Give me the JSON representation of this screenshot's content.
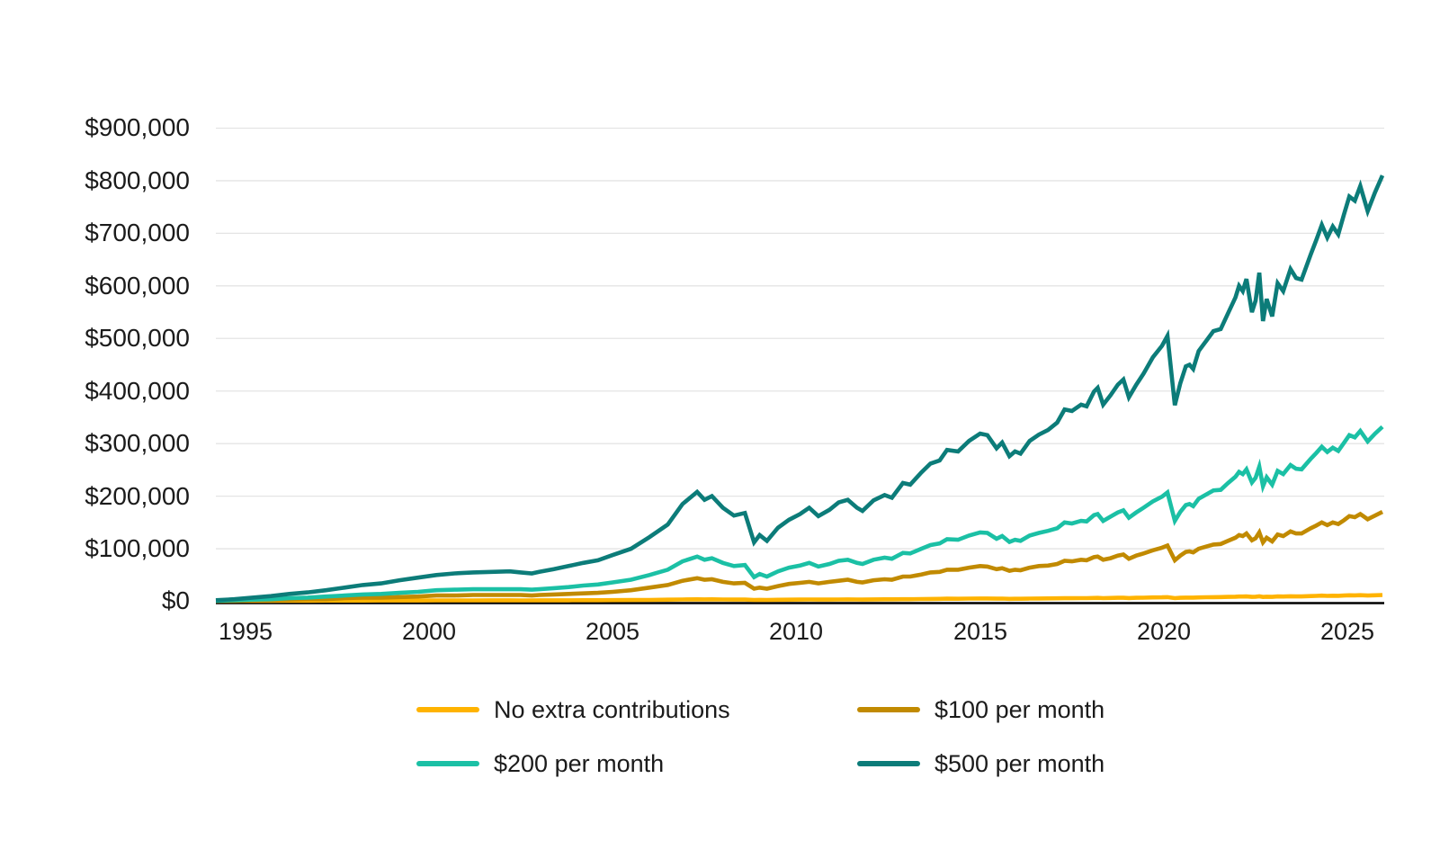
{
  "page": {
    "background": "#ffffff"
  },
  "chart_data": {
    "type": "line",
    "title": "",
    "xlabel": "",
    "ylabel": "",
    "xlim": [
      1994.2,
      2026.0
    ],
    "ylim": [
      0,
      900000
    ],
    "grid": "horizontal",
    "legend_position": "bottom",
    "style": {
      "grid_color": "#e4e4e4",
      "axis_color": "#000000"
    },
    "y_ticks": [
      {
        "value": 900000,
        "label": "$900,000"
      },
      {
        "value": 800000,
        "label": "$800,000"
      },
      {
        "value": 700000,
        "label": "$700,000"
      },
      {
        "value": 600000,
        "label": "$600,000"
      },
      {
        "value": 500000,
        "label": "$500,000"
      },
      {
        "value": 400000,
        "label": "$400,000"
      },
      {
        "value": 300000,
        "label": "$300,000"
      },
      {
        "value": 200000,
        "label": "$200,000"
      },
      {
        "value": 100000,
        "label": "$100,000"
      },
      {
        "value": 0,
        "label": "$0"
      }
    ],
    "x_ticks": [
      {
        "value": 1995,
        "label": "1995"
      },
      {
        "value": 2000,
        "label": "2000"
      },
      {
        "value": 2005,
        "label": "2005"
      },
      {
        "value": 2010,
        "label": "2010"
      },
      {
        "value": 2015,
        "label": "2015"
      },
      {
        "value": 2020,
        "label": "2020"
      },
      {
        "value": 2025,
        "label": "2025"
      }
    ],
    "x": [
      1994.2,
      1994.7,
      1995.2,
      1995.7,
      1996.2,
      1996.7,
      1997.2,
      1997.7,
      1998.2,
      1998.7,
      1999.2,
      1999.7,
      2000.2,
      2000.7,
      2001.2,
      2001.7,
      2002.2,
      2002.5,
      2002.8,
      2003.0,
      2003.4,
      2003.8,
      2004.2,
      2004.6,
      2005.0,
      2005.5,
      2006.0,
      2006.5,
      2006.9,
      2007.3,
      2007.5,
      2007.7,
      2008.0,
      2008.3,
      2008.6,
      2008.85,
      2009.0,
      2009.2,
      2009.5,
      2009.8,
      2010.1,
      2010.35,
      2010.6,
      2010.9,
      2011.15,
      2011.4,
      2011.65,
      2011.8,
      2012.1,
      2012.4,
      2012.6,
      2012.9,
      2013.1,
      2013.4,
      2013.65,
      2013.9,
      2014.1,
      2014.4,
      2014.7,
      2015.0,
      2015.2,
      2015.45,
      2015.6,
      2015.8,
      2015.95,
      2016.1,
      2016.35,
      2016.6,
      2016.85,
      2017.1,
      2017.3,
      2017.5,
      2017.75,
      2017.9,
      2018.1,
      2018.2,
      2018.35,
      2018.55,
      2018.75,
      2018.9,
      2019.05,
      2019.25,
      2019.45,
      2019.7,
      2019.95,
      2020.1,
      2020.3,
      2020.45,
      2020.6,
      2020.7,
      2020.8,
      2020.95,
      2021.15,
      2021.35,
      2021.55,
      2021.75,
      2021.95,
      2022.05,
      2022.15,
      2022.25,
      2022.4,
      2022.5,
      2022.6,
      2022.7,
      2022.8,
      2022.95,
      2023.1,
      2023.25,
      2023.45,
      2023.6,
      2023.75,
      2024.0,
      2024.15,
      2024.3,
      2024.45,
      2024.6,
      2024.75,
      2024.9,
      2025.05,
      2025.2,
      2025.35,
      2025.55,
      2025.75,
      2025.95
    ],
    "series": [
      {
        "name": "No extra contributions",
        "color": "#FFB300",
        "values": [
          1000,
          1100,
          1100,
          1100,
          1200,
          1200,
          1300,
          1400,
          1400,
          1500,
          1500,
          1600,
          1700,
          1700,
          1700,
          1800,
          1800,
          1700,
          1700,
          1800,
          1800,
          1900,
          2000,
          2100,
          2200,
          2400,
          2600,
          3000,
          3500,
          3800,
          3600,
          3700,
          3400,
          3200,
          3300,
          2500,
          2700,
          2600,
          2900,
          3100,
          3200,
          3400,
          3200,
          3300,
          3500,
          3600,
          3400,
          3300,
          3600,
          3700,
          3700,
          4000,
          4000,
          4300,
          4500,
          4600,
          4900,
          4800,
          5100,
          5300,
          5300,
          4900,
          5100,
          4700,
          4800,
          4800,
          5100,
          5300,
          5400,
          5600,
          5900,
          5900,
          6000,
          6000,
          6400,
          6500,
          6000,
          6300,
          6600,
          6700,
          6200,
          6600,
          6800,
          7300,
          7600,
          7800,
          6000,
          6600,
          7000,
          7100,
          7000,
          7400,
          7700,
          7900,
          8000,
          8400,
          8800,
          9100,
          9000,
          9300,
          8400,
          8700,
          9400,
          8200,
          8800,
          8300,
          9200,
          9000,
          9500,
          9300,
          9300,
          9900,
          10300,
          10700,
          10300,
          10600,
          10400,
          10900,
          11400,
          11300,
          11700,
          11000,
          11500,
          11900
        ]
      },
      {
        "name": "$100 per month",
        "color": "#C18A00",
        "values": [
          1000,
          1000,
          2000,
          2000,
          3000,
          4000,
          4000,
          6000,
          7000,
          7000,
          8000,
          9000,
          11000,
          11000,
          12000,
          12000,
          12000,
          12000,
          11000,
          12000,
          13000,
          14000,
          15000,
          16000,
          18000,
          21000,
          26000,
          31000,
          39000,
          44000,
          41000,
          42000,
          37000,
          34000,
          35000,
          24000,
          26000,
          24000,
          29000,
          33000,
          35000,
          37000,
          34000,
          37000,
          39000,
          41000,
          37000,
          36000,
          40000,
          42000,
          41000,
          47000,
          47000,
          51000,
          55000,
          56000,
          60000,
          60000,
          64000,
          67000,
          66000,
          61000,
          63000,
          58000,
          60000,
          59000,
          64000,
          67000,
          68000,
          71000,
          77000,
          76000,
          79000,
          78000,
          84000,
          85000,
          79000,
          82000,
          87000,
          89000,
          81000,
          87000,
          91000,
          97000,
          102000,
          106000,
          78000,
          87000,
          94000,
          95000,
          93000,
          100000,
          104000,
          108000,
          109000,
          115000,
          121000,
          126000,
          124000,
          129000,
          116000,
          120000,
          131000,
          112000,
          121000,
          114000,
          127000,
          124000,
          133000,
          129000,
          129000,
          139000,
          144000,
          150000,
          145000,
          150000,
          147000,
          154000,
          162000,
          160000,
          166000,
          156000,
          163000,
          170000
        ]
      },
      {
        "name": "$200 per month",
        "color": "#1BC0A5",
        "values": [
          1000,
          2000,
          3000,
          4000,
          6000,
          7000,
          9000,
          11000,
          13000,
          14000,
          16000,
          18000,
          21000,
          22000,
          23000,
          23000,
          23000,
          23000,
          22000,
          23000,
          25000,
          27000,
          30000,
          32000,
          36000,
          41000,
          50000,
          60000,
          76000,
          85000,
          79000,
          82000,
          73000,
          67000,
          69000,
          46000,
          52000,
          47000,
          57000,
          64000,
          68000,
          73000,
          66000,
          71000,
          77000,
          79000,
          73000,
          71000,
          79000,
          83000,
          81000,
          92000,
          91000,
          100000,
          107000,
          110000,
          118000,
          117000,
          125000,
          131000,
          130000,
          119000,
          124000,
          113000,
          117000,
          115000,
          125000,
          130000,
          134000,
          139000,
          150000,
          148000,
          153000,
          152000,
          164000,
          166000,
          153000,
          161000,
          169000,
          173000,
          159000,
          169000,
          178000,
          190000,
          199000,
          207000,
          153000,
          170000,
          183000,
          185000,
          181000,
          195000,
          203000,
          211000,
          212000,
          225000,
          237000,
          246000,
          242000,
          251000,
          226000,
          235000,
          256000,
          219000,
          236000,
          222000,
          248000,
          242000,
          259000,
          252000,
          251000,
          271000,
          282000,
          294000,
          284000,
          292000,
          286000,
          301000,
          316000,
          312000,
          324000,
          304000,
          319000,
          332000
        ]
      },
      {
        "name": "$500 per month",
        "color": "#0C7C79",
        "values": [
          2000,
          4000,
          7000,
          10000,
          14000,
          17000,
          21000,
          26000,
          31000,
          34000,
          40000,
          45000,
          50000,
          53000,
          55000,
          56000,
          57000,
          55000,
          53000,
          56000,
          61000,
          67000,
          73000,
          78000,
          88000,
          100000,
          122000,
          146000,
          185000,
          208000,
          193000,
          200000,
          178000,
          163000,
          168000,
          112000,
          126000,
          115000,
          140000,
          155000,
          166000,
          178000,
          162000,
          174000,
          188000,
          193000,
          178000,
          172000,
          192000,
          202000,
          197000,
          225000,
          222000,
          245000,
          262000,
          268000,
          288000,
          285000,
          305000,
          319000,
          316000,
          291000,
          302000,
          276000,
          285000,
          281000,
          305000,
          317000,
          326000,
          340000,
          365000,
          362000,
          374000,
          371000,
          399000,
          406000,
          374000,
          392000,
          412000,
          422000,
          388000,
          412000,
          433000,
          464000,
          486000,
          505000,
          373000,
          415000,
          447000,
          450000,
          442000,
          476000,
          495000,
          514000,
          518000,
          548000,
          578000,
          600000,
          590000,
          613000,
          550000,
          572000,
          625000,
          533000,
          575000,
          542000,
          605000,
          590000,
          632000,
          615000,
          612000,
          660000,
          687000,
          716000,
          692000,
          713000,
          698000,
          735000,
          770000,
          762000,
          790000,
          742000,
          778000,
          810000
        ]
      }
    ]
  }
}
